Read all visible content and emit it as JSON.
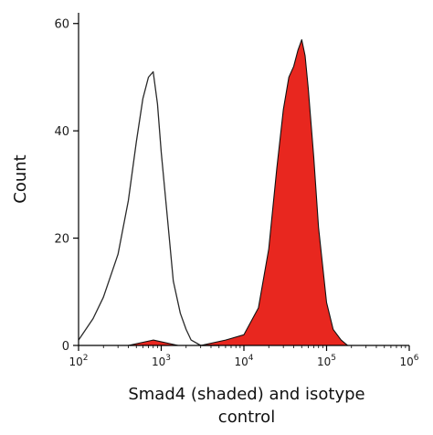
{
  "chart_data": {
    "type": "area",
    "title": "",
    "xlabel": [
      "Smad4 (shaded) and isotype",
      "control"
    ],
    "ylabel": "Count",
    "xscale": "log",
    "xlim": [
      100,
      1000000
    ],
    "ylim": [
      0,
      62
    ],
    "x_ticks": [
      {
        "value": 100,
        "base": "10",
        "exp": "2"
      },
      {
        "value": 1000,
        "base": "10",
        "exp": "3"
      },
      {
        "value": 10000,
        "base": "10",
        "exp": "4"
      },
      {
        "value": 100000,
        "base": "10",
        "exp": "5"
      },
      {
        "value": 1000000,
        "base": "10",
        "exp": "6"
      }
    ],
    "y_ticks": [
      "0",
      "20",
      "40",
      "60"
    ],
    "grid": false,
    "series": [
      {
        "name": "Smad4",
        "style": "filled",
        "color": "#e8271f",
        "x": [
          200,
          400,
          800,
          1600,
          3000,
          6000,
          10000,
          15000,
          20000,
          25000,
          30000,
          35000,
          40000,
          45000,
          50000,
          55000,
          60000,
          70000,
          80000,
          100000,
          120000,
          150000,
          180000
        ],
        "values": [
          0,
          0,
          1,
          0,
          0,
          1,
          2,
          7,
          18,
          33,
          44,
          50,
          52,
          55,
          57,
          54,
          48,
          35,
          22,
          8,
          3,
          1,
          0
        ]
      },
      {
        "name": "isotype control",
        "style": "outline",
        "color": "#2a2a2a",
        "x": [
          100,
          150,
          200,
          300,
          400,
          500,
          600,
          700,
          800,
          900,
          1000,
          1200,
          1400,
          1700,
          2000,
          2300,
          3000,
          5000
        ],
        "values": [
          1,
          5,
          9,
          17,
          27,
          38,
          46,
          50,
          51,
          45,
          36,
          23,
          12,
          6,
          3,
          1,
          0,
          0
        ]
      }
    ]
  }
}
